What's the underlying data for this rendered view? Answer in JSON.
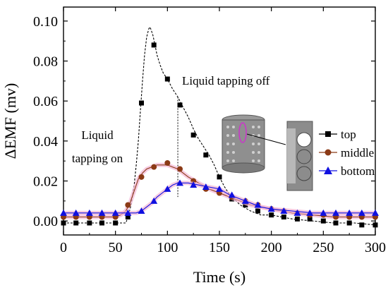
{
  "chart_data": {
    "type": "line",
    "title": "",
    "xlabel": "Time (s)",
    "ylabel": "ΔEMF (mv)",
    "xlim": [
      0,
      300
    ],
    "ylim": [
      -0.007,
      0.107
    ],
    "xticks": [
      0,
      50,
      100,
      150,
      200,
      250,
      300
    ],
    "xtick_labels": [
      "0",
      "50",
      "100",
      "150",
      "200",
      "250",
      "300"
    ],
    "yticks": [
      0,
      0.02,
      0.04,
      0.06,
      0.08,
      0.1
    ],
    "ytick_labels": [
      "0.00",
      "0.02",
      "0.04",
      "0.06",
      "0.08",
      "0.10"
    ],
    "grid": false,
    "legend_position": "right",
    "annotations": {
      "tapping_on_line1": "Liquid",
      "tapping_on_line2": "tapping on",
      "tapping_off": "Liquid tapping off",
      "tapping_off_x": 110
    },
    "series": [
      {
        "name": "top",
        "marker": "square",
        "color": "#000000",
        "x": [
          0,
          12,
          25,
          37,
          50,
          62,
          75,
          87,
          100,
          112,
          125,
          137,
          150,
          162,
          175,
          187,
          200,
          212,
          225,
          237,
          250,
          262,
          275,
          287,
          300
        ],
        "y": [
          -0.001,
          -0.001,
          -0.001,
          -0.001,
          -0.001,
          0.002,
          0.059,
          0.088,
          0.071,
          0.058,
          0.043,
          0.033,
          0.022,
          0.011,
          0.008,
          0.005,
          0.003,
          0.002,
          0.001,
          0.001,
          0.0,
          -0.001,
          -0.001,
          -0.002,
          -0.002
        ],
        "curve_x": [
          0,
          60,
          62,
          65,
          68,
          70,
          72,
          74,
          76,
          78,
          80,
          82,
          83,
          84,
          86,
          88,
          90,
          93,
          96,
          100,
          105,
          110,
          115,
          120,
          125,
          130,
          135,
          140,
          145,
          150,
          155,
          160,
          170,
          180,
          190,
          200,
          220,
          240,
          260,
          280,
          300
        ],
        "curve_y": [
          -0.001,
          -0.001,
          0.002,
          0.008,
          0.018,
          0.028,
          0.04,
          0.055,
          0.07,
          0.083,
          0.092,
          0.096,
          0.097,
          0.096,
          0.093,
          0.088,
          0.083,
          0.078,
          0.074,
          0.071,
          0.066,
          0.062,
          0.057,
          0.052,
          0.046,
          0.041,
          0.037,
          0.033,
          0.028,
          0.022,
          0.017,
          0.013,
          0.008,
          0.005,
          0.003,
          0.003,
          0.001,
          0.0,
          -0.001,
          -0.001,
          -0.002
        ]
      },
      {
        "name": "middle",
        "marker": "circle",
        "color": "#8B3A16",
        "x": [
          0,
          12,
          25,
          37,
          50,
          62,
          75,
          87,
          100,
          112,
          125,
          137,
          150,
          162,
          175,
          187,
          200,
          212,
          225,
          237,
          250,
          262,
          275,
          287,
          300
        ],
        "y": [
          0.002,
          0.002,
          0.002,
          0.002,
          0.002,
          0.008,
          0.022,
          0.027,
          0.029,
          0.026,
          0.02,
          0.016,
          0.014,
          0.012,
          0.01,
          0.008,
          0.006,
          0.005,
          0.004,
          0.003,
          0.003,
          0.002,
          0.002,
          0.002,
          0.002
        ],
        "curve_x": [
          0,
          50,
          55,
          60,
          64,
          68,
          72,
          76,
          80,
          85,
          90,
          95,
          100,
          105,
          110,
          120,
          130,
          140,
          150,
          160,
          170,
          180,
          190,
          200,
          220,
          240,
          260,
          280,
          300
        ],
        "curve_y": [
          0.002,
          0.002,
          0.003,
          0.005,
          0.009,
          0.015,
          0.021,
          0.024,
          0.026,
          0.027,
          0.028,
          0.028,
          0.028,
          0.027,
          0.026,
          0.022,
          0.019,
          0.016,
          0.014,
          0.012,
          0.01,
          0.008,
          0.007,
          0.006,
          0.004,
          0.003,
          0.002,
          0.002,
          0.002
        ]
      },
      {
        "name": "bottom",
        "marker": "triangle",
        "color": "#1010E0",
        "x": [
          0,
          12,
          25,
          37,
          50,
          62,
          75,
          87,
          100,
          112,
          125,
          137,
          150,
          162,
          175,
          187,
          200,
          212,
          225,
          237,
          250,
          262,
          275,
          287,
          300
        ],
        "y": [
          0.004,
          0.004,
          0.004,
          0.004,
          0.004,
          0.004,
          0.005,
          0.01,
          0.016,
          0.019,
          0.018,
          0.017,
          0.016,
          0.013,
          0.01,
          0.008,
          0.006,
          0.005,
          0.004,
          0.004,
          0.004,
          0.004,
          0.004,
          0.004,
          0.004
        ],
        "curve_x": [
          0,
          60,
          65,
          70,
          75,
          80,
          85,
          90,
          95,
          100,
          105,
          110,
          115,
          120,
          130,
          140,
          150,
          160,
          170,
          180,
          190,
          200,
          220,
          240,
          260,
          280,
          300
        ],
        "curve_y": [
          0.004,
          0.004,
          0.004,
          0.004,
          0.005,
          0.007,
          0.009,
          0.012,
          0.014,
          0.016,
          0.018,
          0.019,
          0.019,
          0.019,
          0.018,
          0.017,
          0.016,
          0.013,
          0.011,
          0.009,
          0.007,
          0.006,
          0.005,
          0.004,
          0.004,
          0.004,
          0.004
        ]
      }
    ]
  }
}
